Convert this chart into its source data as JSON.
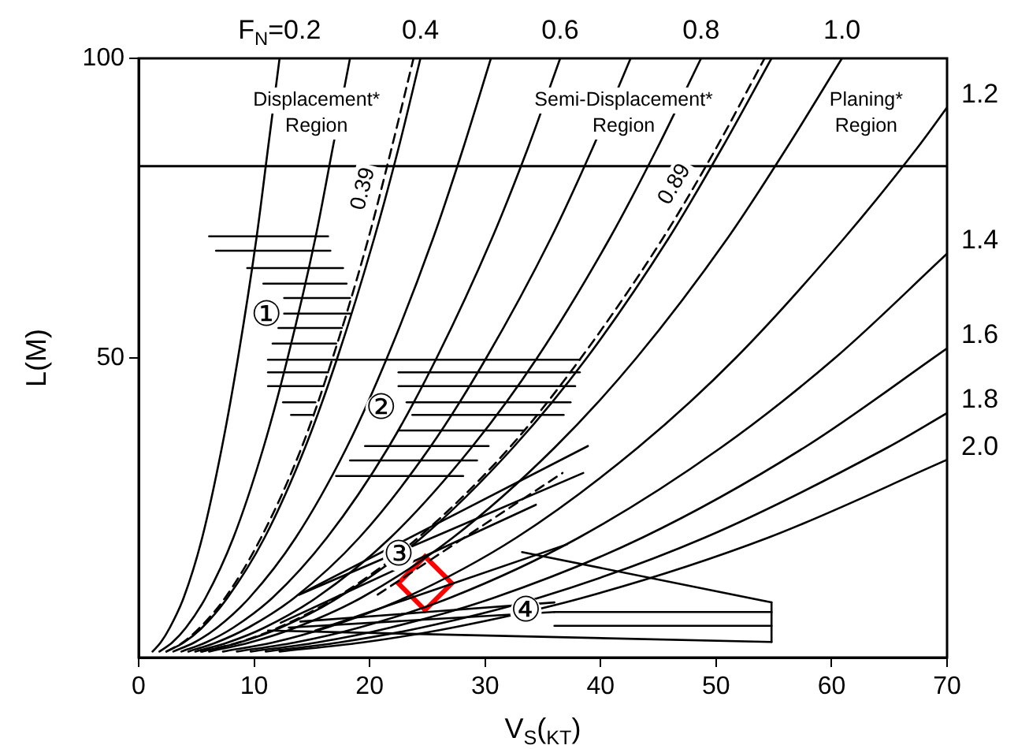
{
  "chart_data": {
    "type": "line",
    "xlabel": "V$_{S}$($_{KT}$)",
    "ylabel": "L(M)",
    "xlim": [
      0,
      70
    ],
    "ylim": [
      0,
      100
    ],
    "xticks": [
      0,
      10,
      20,
      30,
      40,
      50,
      60,
      70
    ],
    "yticks": [
      50,
      100
    ],
    "grid": false,
    "legend": false,
    "marker": "none",
    "ref_lines": [
      {
        "axis": "y",
        "value": 82
      }
    ],
    "annotations": [
      "Displacement* Region",
      "Semi-Displacement* Region",
      "Planing* Region",
      "①",
      "②",
      "③",
      "④"
    ],
    "series": [
      {
        "name": "F$_{N}$=0.2",
        "color": "#000000",
        "x": [
          1.2,
          1.9,
          2.7,
          3.9,
          5.5,
          7.2,
          8.6,
          10.2,
          11.2,
          12.2
        ],
        "values": [
          1,
          2.5,
          5,
          10,
          20,
          35,
          50,
          70,
          85,
          100
        ]
      },
      {
        "color": "#000000",
        "x": [
          1.8,
          2.9,
          4.1,
          5.8,
          8.2,
          10.8,
          12.9,
          15.3,
          16.8,
          18.3
        ],
        "values": [
          1,
          2.5,
          5,
          10,
          20,
          35,
          50,
          70,
          85,
          100
        ]
      },
      {
        "name": "0.39",
        "color": "#000000",
        "line_style": "dashed",
        "x": [
          2.4,
          3.8,
          5.3,
          7.5,
          10.6,
          14.1,
          16.8,
          19.9,
          21.9,
          23.8
        ],
        "values": [
          1,
          2.5,
          5,
          10,
          20,
          35,
          50,
          70,
          85,
          100
        ]
      },
      {
        "name": "0.4",
        "color": "#000000",
        "x": [
          2.4,
          3.9,
          5.5,
          7.7,
          10.9,
          14.4,
          17.2,
          20.4,
          22.5,
          24.4
        ],
        "values": [
          1,
          2.5,
          5,
          10,
          20,
          35,
          50,
          70,
          85,
          100
        ]
      },
      {
        "color": "#000000",
        "x": [
          3,
          4.8,
          6.8,
          9.6,
          13.6,
          18,
          21.5,
          25.5,
          28.1,
          30.5
        ],
        "values": [
          1,
          2.5,
          5,
          10,
          20,
          35,
          50,
          70,
          85,
          100
        ]
      },
      {
        "name": "0.6",
        "color": "#000000",
        "x": [
          3.7,
          5.8,
          8.2,
          11.6,
          16.3,
          21.6,
          25.8,
          30.6,
          33.7,
          36.5
        ],
        "values": [
          1,
          2.5,
          5,
          10,
          20,
          35,
          50,
          70,
          85,
          100
        ]
      },
      {
        "color": "#000000",
        "x": [
          4.3,
          6.7,
          9.5,
          13.5,
          19.1,
          25.2,
          30.1,
          35.7,
          39.3,
          42.6
        ],
        "values": [
          1,
          2.5,
          5,
          10,
          20,
          35,
          50,
          70,
          85,
          100
        ]
      },
      {
        "name": "0.8",
        "color": "#000000",
        "x": [
          4.9,
          7.7,
          10.9,
          15.4,
          21.8,
          28.8,
          34.5,
          40.8,
          44.9,
          48.7
        ],
        "values": [
          1,
          2.5,
          5,
          10,
          20,
          35,
          50,
          70,
          85,
          100
        ]
      },
      {
        "name": "0.89",
        "color": "#000000",
        "line_style": "dashed",
        "x": [
          5.4,
          8.6,
          12.1,
          17.1,
          24.2,
          32.1,
          38.3,
          45.4,
          50,
          54.2
        ],
        "values": [
          1,
          2.5,
          5,
          10,
          20,
          35,
          50,
          70,
          85,
          100
        ]
      },
      {
        "color": "#000000",
        "x": [
          5.5,
          8.7,
          12.3,
          17.3,
          24.5,
          32.4,
          38.8,
          45.9,
          50.5,
          54.8
        ],
        "values": [
          1,
          2.5,
          5,
          10,
          20,
          35,
          50,
          70,
          85,
          100
        ]
      },
      {
        "name": "1.0",
        "color": "#000000",
        "x": [
          6.1,
          9.6,
          13.6,
          19.3,
          27.2,
          36,
          43.1,
          51,
          56.1,
          60.9
        ],
        "values": [
          1,
          2.5,
          5,
          10,
          20,
          35,
          50,
          70,
          85,
          100
        ]
      },
      {
        "name": "1.2",
        "color": "#000000",
        "x": [
          7.3,
          11.6,
          16.3,
          23.1,
          32.7,
          43.2,
          51.7,
          61.1,
          67.4,
          70
        ],
        "values": [
          1,
          2.5,
          5,
          10,
          20,
          35,
          50,
          70,
          85,
          91.8
        ]
      },
      {
        "name": "1.4",
        "color": "#000000",
        "x": [
          8.5,
          13.5,
          19.1,
          27,
          38.1,
          50.4,
          60.3,
          70
        ],
        "values": [
          1,
          2.5,
          5,
          10,
          20,
          35,
          50,
          67.4
        ]
      },
      {
        "name": "1.6",
        "color": "#000000",
        "x": [
          9.7,
          15.4,
          21.8,
          30.8,
          43.6,
          57.6,
          70
        ],
        "values": [
          1,
          2.5,
          5,
          10,
          20,
          35,
          51.6
        ]
      },
      {
        "name": "1.8",
        "color": "#000000",
        "x": [
          11,
          17.3,
          24.5,
          34.7,
          49,
          64.8,
          70
        ],
        "values": [
          1,
          2.5,
          5,
          10,
          20,
          35,
          40.8
        ]
      },
      {
        "name": "2.0",
        "color": "#000000",
        "x": [
          12.2,
          19.3,
          27.2,
          38.5,
          54.5,
          70
        ],
        "values": [
          1,
          2.5,
          5,
          10,
          20,
          33
        ]
      },
      {
        "color": "#000000",
        "x": [
          6.1,
          16.4
        ],
        "values": [
          70.3,
          70.3
        ]
      },
      {
        "color": "#000000",
        "x": [
          6.7,
          16.6
        ],
        "values": [
          67.9,
          67.9
        ]
      },
      {
        "color": "#000000",
        "x": [
          9.4,
          17.7
        ],
        "values": [
          65,
          65
        ]
      },
      {
        "color": "#000000",
        "x": [
          10.8,
          18
        ],
        "values": [
          62.4,
          62.4
        ]
      },
      {
        "color": "#000000",
        "x": [
          12.6,
          18.3
        ],
        "values": [
          60,
          60
        ]
      },
      {
        "color": "#000000",
        "x": [
          12.6,
          18.3
        ],
        "values": [
          57.4,
          57.4
        ]
      },
      {
        "color": "#000000",
        "x": [
          12.1,
          17.6
        ],
        "values": [
          55,
          55
        ]
      },
      {
        "color": "#000000",
        "x": [
          11.6,
          17.1
        ],
        "values": [
          52.4,
          52.4
        ]
      },
      {
        "color": "#000000",
        "x": [
          11.2,
          38.2
        ],
        "values": [
          49.7,
          49.7
        ]
      },
      {
        "color": "#000000",
        "x": [
          11.2,
          16.4
        ],
        "values": [
          47.6,
          47.6
        ]
      },
      {
        "color": "#000000",
        "x": [
          11.2,
          16
        ],
        "values": [
          45.3,
          45.3
        ]
      },
      {
        "color": "#000000",
        "x": [
          12.5,
          15.3
        ],
        "values": [
          42.6,
          42.6
        ]
      },
      {
        "color": "#000000",
        "x": [
          13.2,
          15
        ],
        "values": [
          40.5,
          40.5
        ]
      },
      {
        "color": "#000000",
        "x": [
          22.5,
          38.2
        ],
        "values": [
          47.6,
          47.6
        ]
      },
      {
        "color": "#000000",
        "x": [
          22.5,
          37.8
        ],
        "values": [
          45.3,
          45.3
        ]
      },
      {
        "color": "#000000",
        "x": [
          23.2,
          37.4
        ],
        "values": [
          42.6,
          42.6
        ]
      },
      {
        "color": "#000000",
        "x": [
          23.7,
          36.8
        ],
        "values": [
          40.5,
          40.5
        ]
      },
      {
        "color": "#000000",
        "x": [
          22.5,
          33.4
        ],
        "values": [
          37.9,
          37.9
        ]
      },
      {
        "color": "#000000",
        "x": [
          19.6,
          30.3
        ],
        "values": [
          35.3,
          35.3
        ]
      },
      {
        "color": "#000000",
        "x": [
          18.3,
          29.3
        ],
        "values": [
          32.9,
          32.9
        ]
      },
      {
        "color": "#000000",
        "x": [
          17.1,
          28.1
        ],
        "values": [
          30.3,
          30.3
        ]
      },
      {
        "color": "#000000",
        "x": [
          13.9,
          38.9
        ],
        "values": [
          10.5,
          35.3
        ]
      },
      {
        "color": "#000000",
        "x": [
          13.9,
          38.5
        ],
        "values": [
          10.5,
          30.8
        ]
      },
      {
        "color": "#000000",
        "x": [
          12.3,
          34.4
        ],
        "values": [
          5.8,
          25.5
        ]
      },
      {
        "color": "#000000",
        "x": [
          15.3,
          37.1
        ],
        "values": [
          4.5,
          18.9
        ]
      },
      {
        "color": "#000000",
        "line_style": "dashed",
        "x": [
          20.7,
          36.7
        ],
        "values": [
          10.5,
          30.8
        ]
      },
      {
        "color": "#000000",
        "x": [
          33.2,
          54.8
        ],
        "values": [
          17.6,
          9.2
        ]
      },
      {
        "color": "#000000",
        "x": [
          14,
          36
        ],
        "values": [
          6,
          9.2
        ]
      },
      {
        "color": "#000000",
        "x": [
          13,
          36
        ],
        "values": [
          5,
          7.6
        ]
      },
      {
        "color": "#000000",
        "x": [
          36,
          54.8
        ],
        "values": [
          7.6,
          7.6
        ]
      },
      {
        "color": "#000000",
        "x": [
          36,
          54.8
        ],
        "values": [
          5.3,
          5.3
        ]
      },
      {
        "color": "#000000",
        "x": [
          11.2,
          54.8
        ],
        "values": [
          4.5,
          2.6
        ]
      },
      {
        "color": "#000000",
        "x": [
          54.8,
          54.8
        ],
        "values": [
          2.6,
          9.2
        ]
      },
      {
        "type": "scatter",
        "marker": "diamond",
        "color": "#ff0000",
        "x": [
          24.8
        ],
        "values": [
          12.4
        ]
      }
    ]
  }
}
